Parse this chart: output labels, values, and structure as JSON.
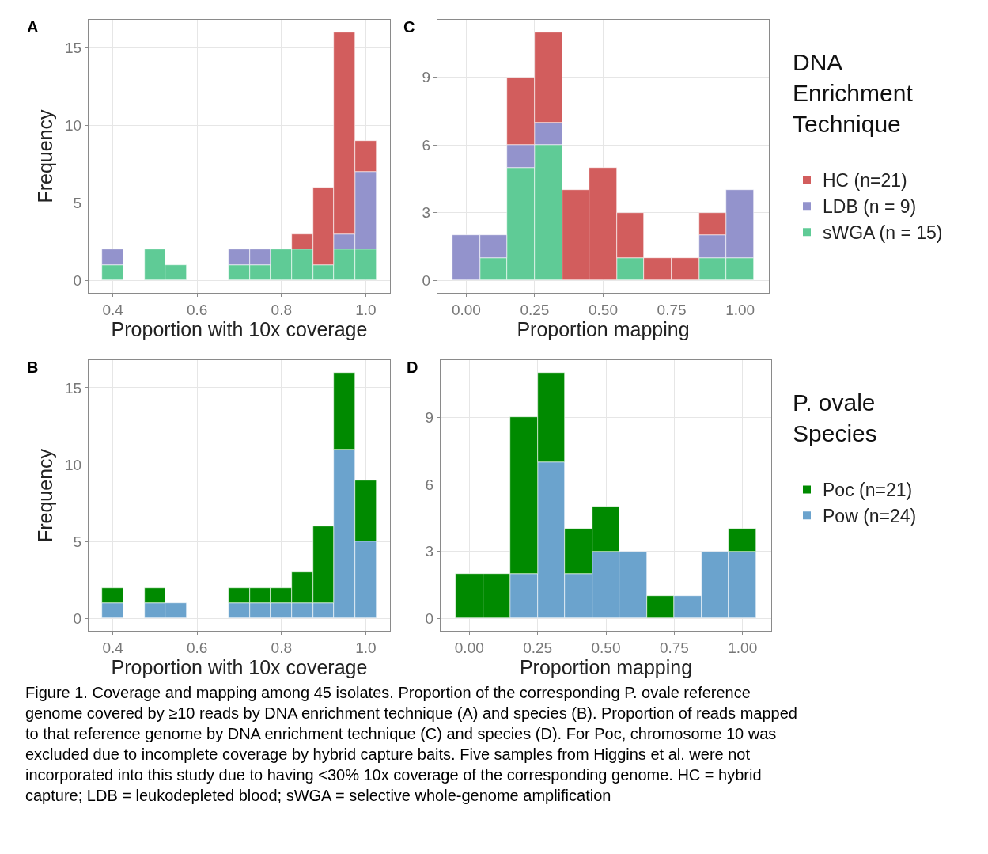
{
  "chart_data": [
    {
      "type": "bar",
      "title": "A",
      "xlabel": "Proportion with 10x coverage",
      "ylabel": "Frequency",
      "stacked": true,
      "grid": true,
      "legend": "right",
      "legend_title": "DNA\nEnrichment\nTechnique",
      "x": [
        0.4,
        0.45,
        0.5,
        0.55,
        0.6,
        0.65,
        0.7,
        0.75,
        0.8,
        0.85,
        0.9,
        0.95,
        1.0
      ],
      "series": [
        {
          "name": "sWGA (n = 15)",
          "color": "#5fcb96",
          "values": [
            1,
            0,
            2,
            1,
            0,
            0,
            1,
            1,
            2,
            2,
            1,
            2,
            2
          ]
        },
        {
          "name": "LDB (n = 9)",
          "color": "#9393cc",
          "values": [
            1,
            0,
            0,
            0,
            0,
            0,
            1,
            1,
            0,
            0,
            0,
            1,
            5
          ]
        },
        {
          "name": "HC (n=21)",
          "color": "#d25d5d",
          "values": [
            0,
            0,
            0,
            0,
            0,
            0,
            0,
            0,
            0,
            1,
            5,
            13,
            2
          ]
        }
      ],
      "xlim": [
        0.3425,
        1.0575
      ],
      "xticks": [
        0.4,
        0.6,
        0.8,
        {
          "value": 1,
          "label": "1.0"
        }
      ],
      "ylim": [
        -0.8,
        16.8
      ],
      "yticks": [
        0,
        5,
        10,
        15
      ]
    },
    {
      "type": "bar",
      "title": "C",
      "xlabel": "Proportion mapping",
      "stacked": true,
      "grid": true,
      "x": [
        0,
        0.1,
        0.2,
        0.3,
        0.4,
        0.5,
        0.6,
        0.7,
        0.8,
        0.9,
        1.0
      ],
      "series": [
        {
          "color": "#5fcb96",
          "values": [
            0,
            1,
            5,
            6,
            0,
            0,
            1,
            0,
            0,
            1,
            1
          ]
        },
        {
          "color": "#9393cc",
          "values": [
            2,
            1,
            1,
            1,
            0,
            0,
            0,
            0,
            0,
            1,
            3
          ]
        },
        {
          "color": "#d25d5d",
          "values": [
            0,
            0,
            3,
            4,
            4,
            5,
            2,
            1,
            1,
            1,
            0
          ]
        }
      ],
      "xlim": [
        -0.105,
        1.105
      ],
      "xticks": [
        {
          "value": 0,
          "label": "0.00"
        },
        {
          "value": 0.25,
          "label": "0.25"
        },
        {
          "value": 0.5,
          "label": "0.50"
        },
        {
          "value": 0.75,
          "label": "0.75"
        },
        {
          "value": 1,
          "label": "1.00"
        }
      ],
      "ylim": [
        -0.55,
        11.55
      ],
      "yticks": [
        0,
        3,
        6,
        9
      ]
    },
    {
      "type": "bar",
      "title": "B",
      "xlabel": "Proportion with 10x coverage",
      "ylabel": "Frequency",
      "stacked": true,
      "grid": true,
      "legend": "right",
      "legend_title": "P. ovale\nSpecies",
      "x": [
        0.4,
        0.45,
        0.5,
        0.55,
        0.6,
        0.65,
        0.7,
        0.75,
        0.8,
        0.85,
        0.9,
        0.95,
        1.0
      ],
      "series": [
        {
          "name": "Pow (n=24)",
          "color": "#6ba3cd",
          "values": [
            1,
            0,
            1,
            1,
            0,
            0,
            1,
            1,
            1,
            1,
            1,
            11,
            5
          ]
        },
        {
          "name": "Poc (n=21)",
          "color": "#008a00",
          "values": [
            1,
            0,
            1,
            0,
            0,
            0,
            1,
            1,
            1,
            2,
            5,
            5,
            4
          ]
        }
      ],
      "xlim": [
        0.3425,
        1.0575
      ],
      "xticks": [
        0.4,
        0.6,
        0.8,
        {
          "value": 1,
          "label": "1.0"
        }
      ],
      "ylim": [
        -0.8,
        16.8
      ],
      "yticks": [
        0,
        5,
        10,
        15
      ]
    },
    {
      "type": "bar",
      "title": "D",
      "xlabel": "Proportion mapping",
      "stacked": true,
      "grid": true,
      "x": [
        0,
        0.1,
        0.2,
        0.3,
        0.4,
        0.5,
        0.6,
        0.7,
        0.8,
        0.9,
        1.0
      ],
      "series": [
        {
          "color": "#6ba3cd",
          "values": [
            0,
            0,
            2,
            7,
            2,
            3,
            3,
            0,
            1,
            3,
            3
          ]
        },
        {
          "color": "#008a00",
          "values": [
            2,
            2,
            7,
            4,
            2,
            2,
            0,
            1,
            0,
            0,
            1
          ]
        }
      ],
      "xlim": [
        -0.105,
        1.105
      ],
      "xticks": [
        {
          "value": 0,
          "label": "0.00"
        },
        {
          "value": 0.25,
          "label": "0.25"
        },
        {
          "value": 0.5,
          "label": "0.50"
        },
        {
          "value": 0.75,
          "label": "0.75"
        },
        {
          "value": 1,
          "label": "1.00"
        }
      ],
      "ylim": [
        -0.55,
        11.55
      ],
      "yticks": [
        0,
        3,
        6,
        9
      ],
      "annotations": [
        "Figure 1. Coverage and mapping among 45 isolates. Proportion of the corresponding P. ovale reference genome covered by ≥10 reads by DNA enrichment technique (A) and species (B). Proportion of reads mapped to that reference genome by DNA enrichment technique (C) and species (D). For Poc, chromosome 10 was excluded due to incomplete coverage by hybrid capture baits. Five samples from Higgins et al. were not incorporated into this study due to having <30% 10x coverage of the corresponding genome. HC = hybrid capture; LDB = leukodepleted blood; sWGA = selective whole-genome amplification"
      ]
    }
  ]
}
